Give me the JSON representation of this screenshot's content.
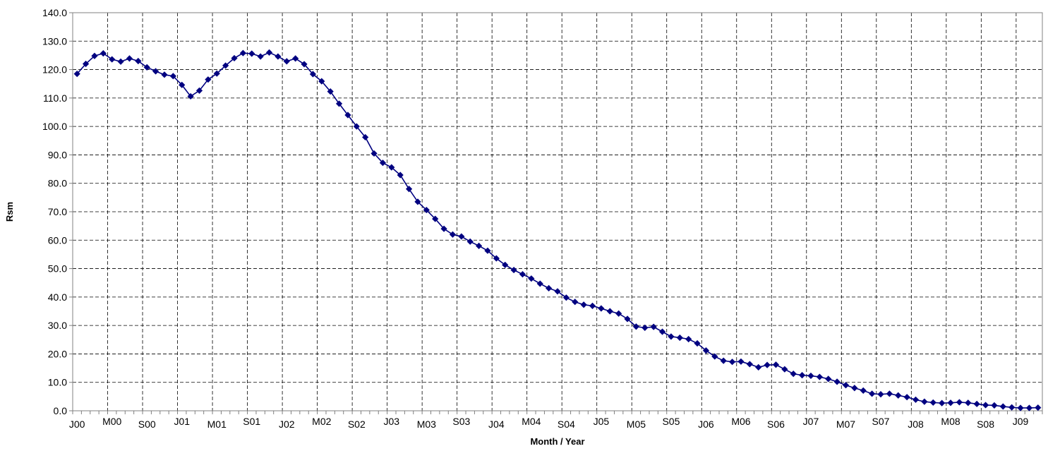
{
  "chart_data": {
    "type": "line",
    "title": "",
    "xlabel": "Month / Year",
    "ylabel": "Rsm",
    "ylim": [
      0,
      140
    ],
    "y_ticks": [
      "0.0",
      "10.0",
      "20.0",
      "30.0",
      "40.0",
      "50.0",
      "60.0",
      "70.0",
      "80.0",
      "90.0",
      "100.0",
      "110.0",
      "120.0",
      "130.0",
      "140.0"
    ],
    "x_tick_labels": [
      "J00",
      "M00",
      "S00",
      "J01",
      "M01",
      "S01",
      "J02",
      "M02",
      "S02",
      "J03",
      "M03",
      "S03",
      "J04",
      "M04",
      "S04",
      "J05",
      "M05",
      "S05",
      "J06",
      "M06",
      "S06",
      "J07",
      "M07",
      "S07",
      "J08",
      "M08",
      "S08",
      "J09"
    ],
    "grid": true,
    "legend": "none",
    "line_color": "#000080",
    "marker": "diamond",
    "series": [
      {
        "values": [
          118.5,
          122,
          124.8,
          125.7,
          123.6,
          122.8,
          123.9,
          123,
          120.8,
          119.4,
          118.2,
          117.7,
          114.6,
          110.6,
          112.6,
          116.5,
          118.6,
          121.4,
          124,
          125.8,
          125.6,
          124.6,
          126,
          124.6,
          122.9,
          123.9,
          121.9,
          118.4,
          115.9,
          112.3,
          108,
          104,
          100,
          96.2,
          90.5,
          87.2,
          85.6,
          82.9,
          78,
          73.5,
          70.6,
          67.5,
          64,
          62,
          61.3,
          59.5,
          58,
          56.3,
          53.6,
          51.3,
          49.5,
          48,
          46.5,
          44.7,
          43.1,
          42,
          39.8,
          38.3,
          37.3,
          36.9,
          36,
          35,
          34.2,
          32.3,
          29.6,
          29.2,
          29.5,
          27.8,
          26.1,
          25.7,
          25.2,
          23.7,
          21.2,
          19.1,
          17.6,
          17.2,
          17.3,
          16.4,
          15.3,
          16.1,
          16.2,
          14.6,
          13,
          12.5,
          12.3,
          11.9,
          11.2,
          10.2,
          9,
          8,
          7.1,
          6,
          5.8,
          6,
          5.4,
          4.8,
          3.9,
          3.2,
          2.9,
          2.7,
          2.8,
          3,
          2.8,
          2.4,
          2,
          1.9,
          1.5,
          1.2,
          1,
          1,
          1.1
        ]
      }
    ]
  }
}
